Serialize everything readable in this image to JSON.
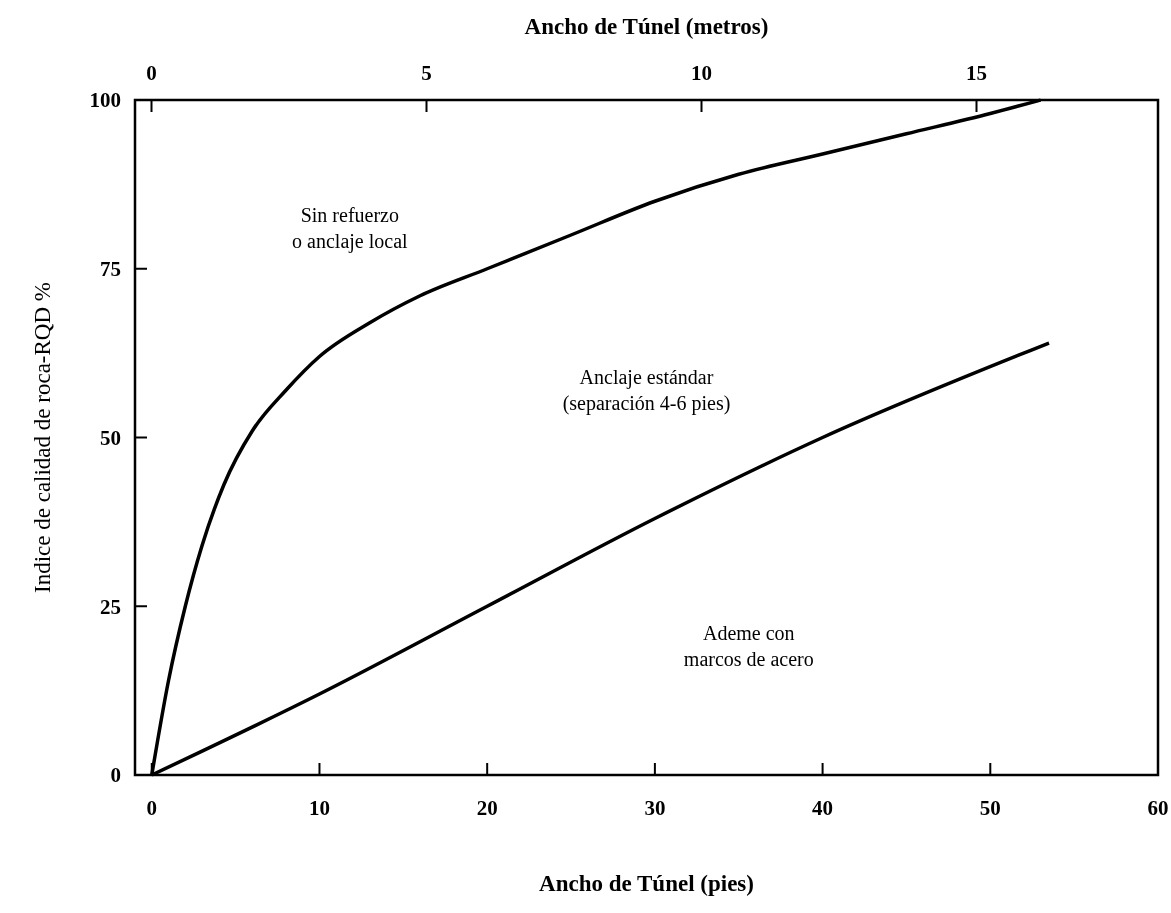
{
  "chart_data": {
    "type": "line",
    "xlabel": "Ancho de Túnel (pies)",
    "x2label": "Ancho de Túnel (metros)",
    "ylabel": "Indice de calidad de roca-RQD %",
    "xlim": [
      -1,
      60
    ],
    "xticks": [
      0,
      10,
      20,
      30,
      40,
      50,
      60
    ],
    "x2lim": [
      -0.3,
      18.3
    ],
    "x2ticks": [
      0,
      5,
      10,
      15
    ],
    "ylim": [
      0,
      100
    ],
    "yticks": [
      0,
      25,
      50,
      75,
      100
    ],
    "series": [
      {
        "color": "#000000",
        "x": [
          0,
          1,
          2,
          3,
          4.3,
          6,
          8,
          10,
          13,
          16,
          20,
          25,
          30,
          35,
          40,
          45,
          50,
          53
        ],
        "values": [
          0,
          14,
          25,
          34,
          43,
          51,
          57,
          62,
          67,
          71,
          75,
          80,
          85,
          89,
          92,
          95,
          98,
          100
        ]
      },
      {
        "color": "#000000",
        "x": [
          0,
          10,
          20,
          30,
          40,
          53.5
        ],
        "values": [
          0,
          12,
          25,
          38,
          50,
          64
        ]
      }
    ],
    "annotations": [
      "Sin refuerzo\no anclaje local",
      "Anclaje estándar\n(separación 4-6 pies)",
      "Ademe con\nmarcos de acero"
    ],
    "grid": false,
    "marker": "none",
    "line_style": "solid"
  }
}
